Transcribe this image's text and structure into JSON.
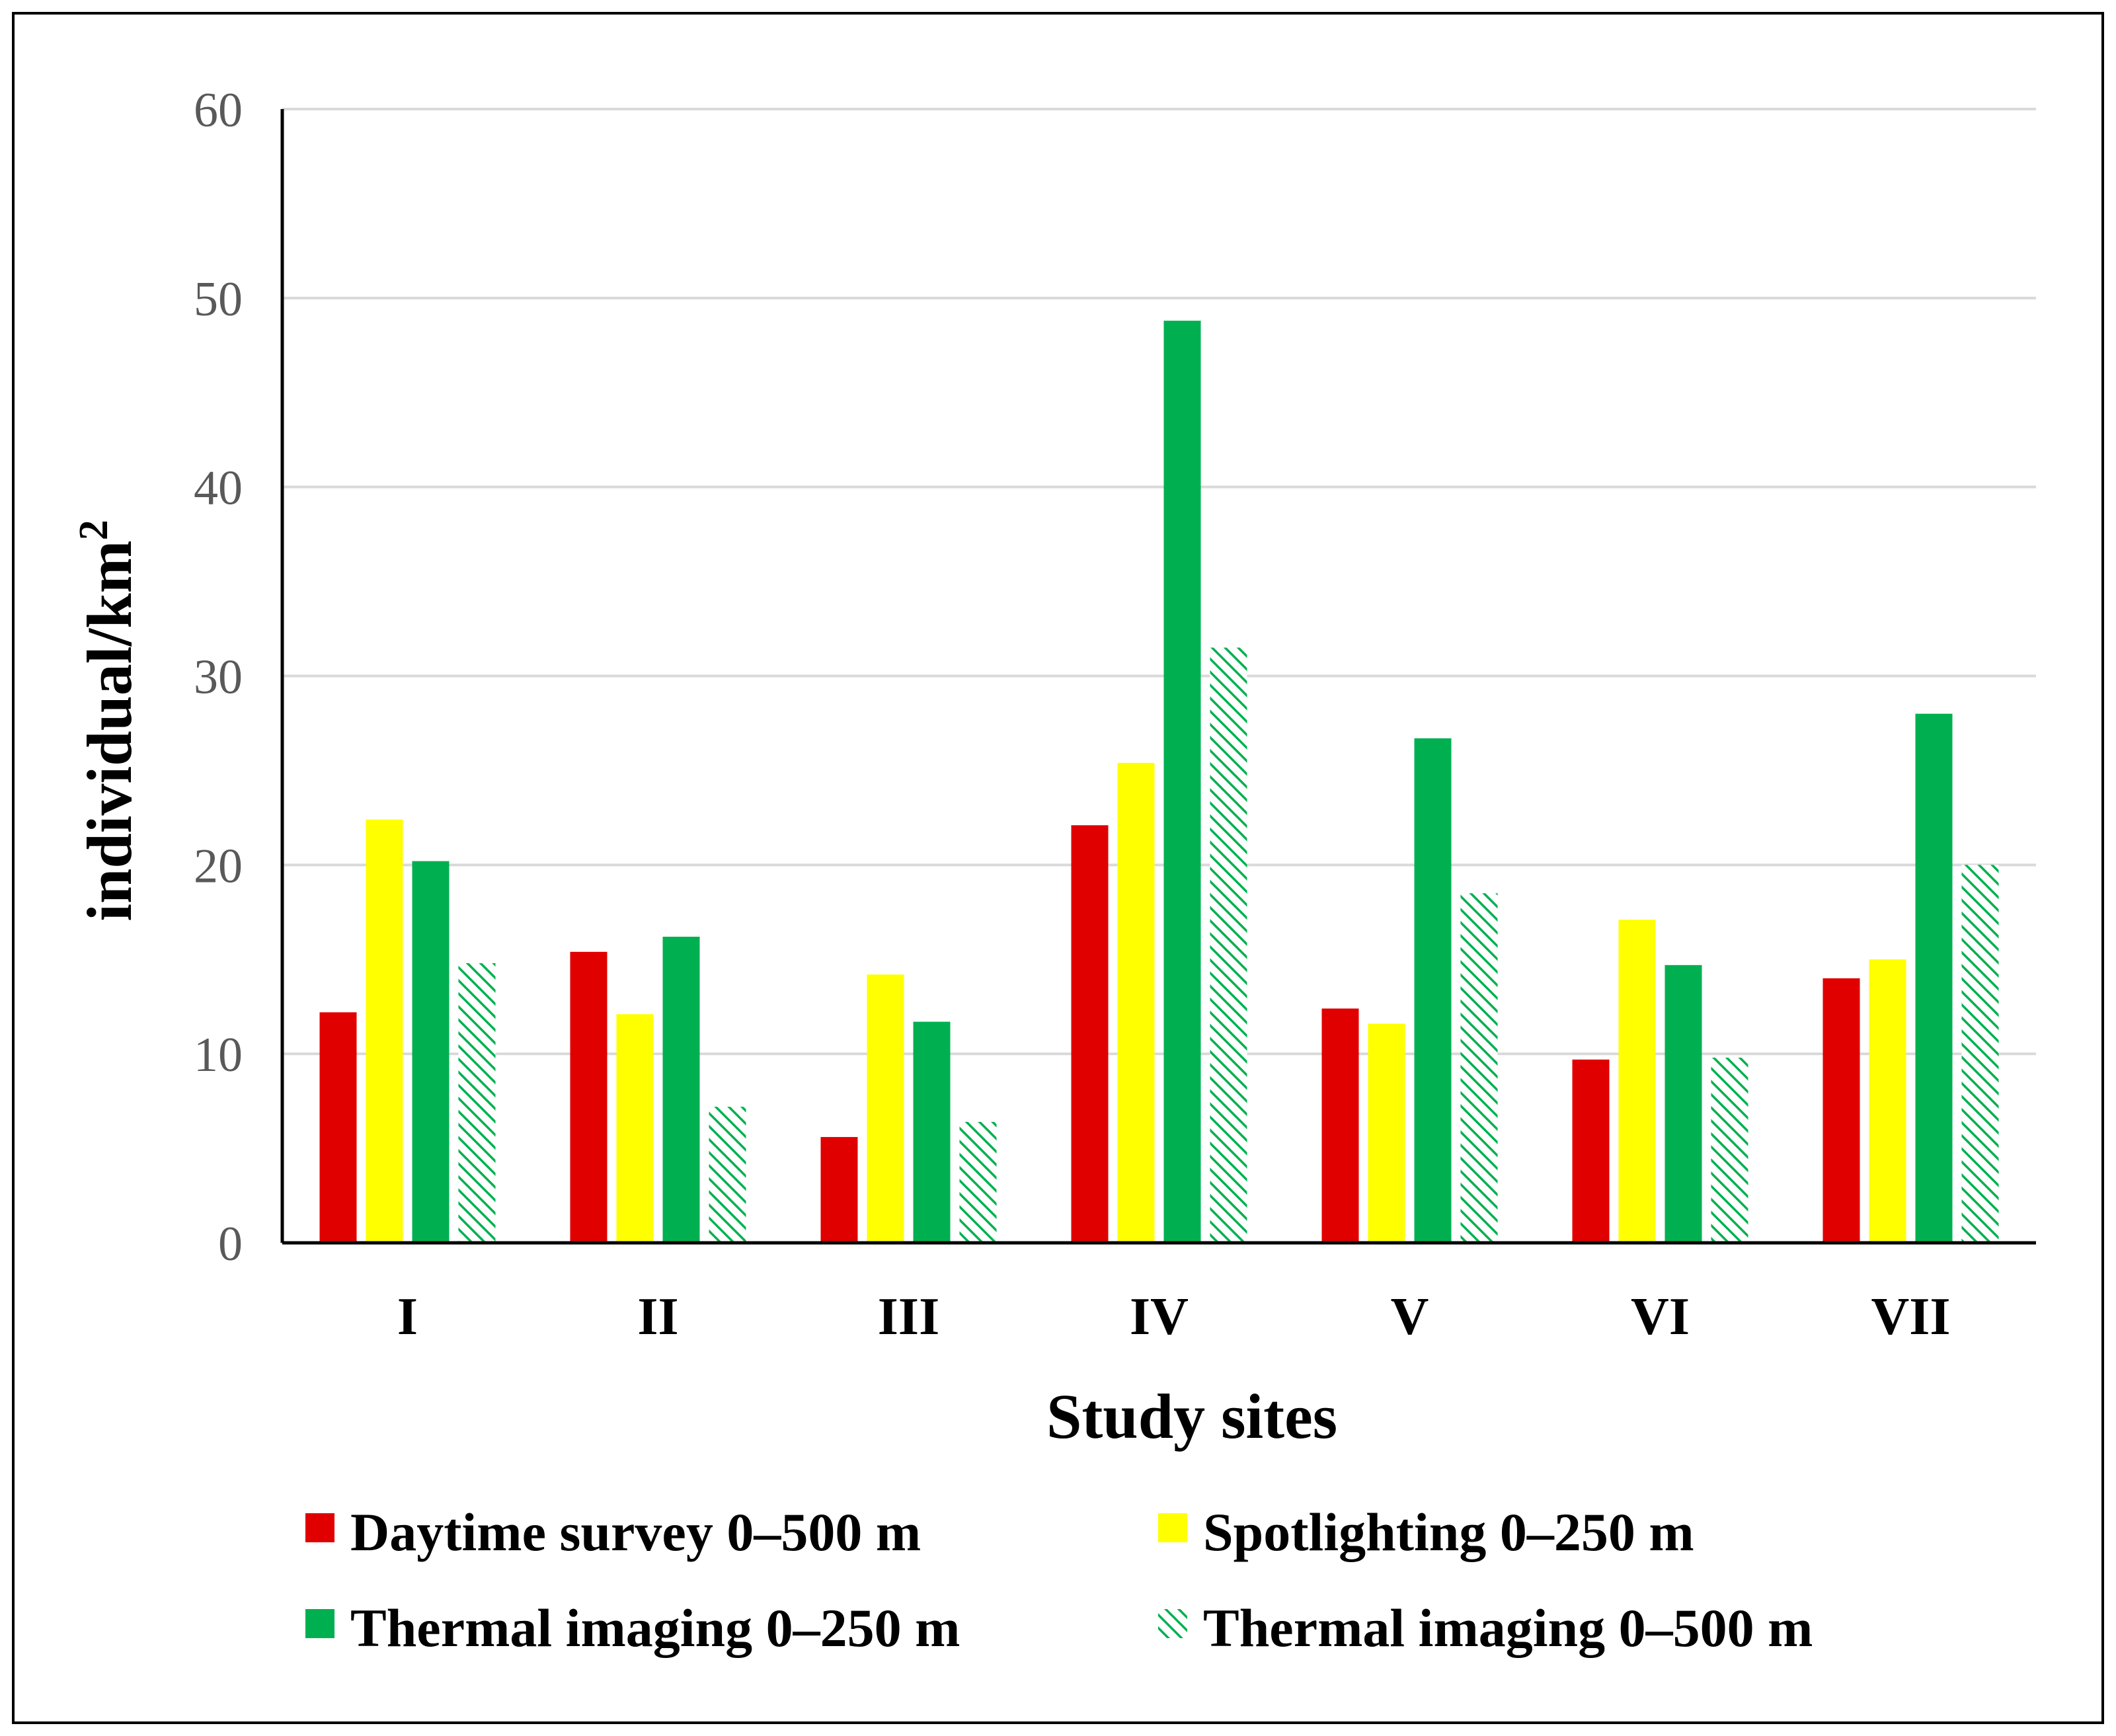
{
  "chart_data": {
    "type": "bar",
    "title": "",
    "xlabel": "Study sites",
    "ylabel_text": "individual/km",
    "ylabel_superscript": "2",
    "ylim": [
      0,
      60
    ],
    "yticks": [
      0,
      10,
      20,
      30,
      40,
      50,
      60
    ],
    "grid": true,
    "legend_position": "bottom",
    "categories": [
      "I",
      "II",
      "III",
      "IV",
      "V",
      "VI",
      "VII"
    ],
    "series": [
      {
        "name": "Daytime survey 0–500 m",
        "color": "#e00000",
        "pattern": "solid",
        "values": [
          12.2,
          15.4,
          5.6,
          22.1,
          12.4,
          9.7,
          14.0
        ]
      },
      {
        "name": "Spotlighting 0–250 m",
        "color": "#ffff00",
        "pattern": "solid",
        "values": [
          22.4,
          12.1,
          14.2,
          25.4,
          11.6,
          17.1,
          15.0
        ]
      },
      {
        "name": "Thermal imaging 0–250 m",
        "color": "#00b050",
        "pattern": "solid",
        "values": [
          20.2,
          16.2,
          11.7,
          48.8,
          26.7,
          14.7,
          28.0
        ]
      },
      {
        "name": "Thermal imaging 0–500 m",
        "color": "#00b050",
        "pattern": "hatched",
        "values": [
          14.8,
          7.2,
          6.4,
          31.5,
          18.5,
          9.8,
          20.0
        ]
      }
    ]
  }
}
